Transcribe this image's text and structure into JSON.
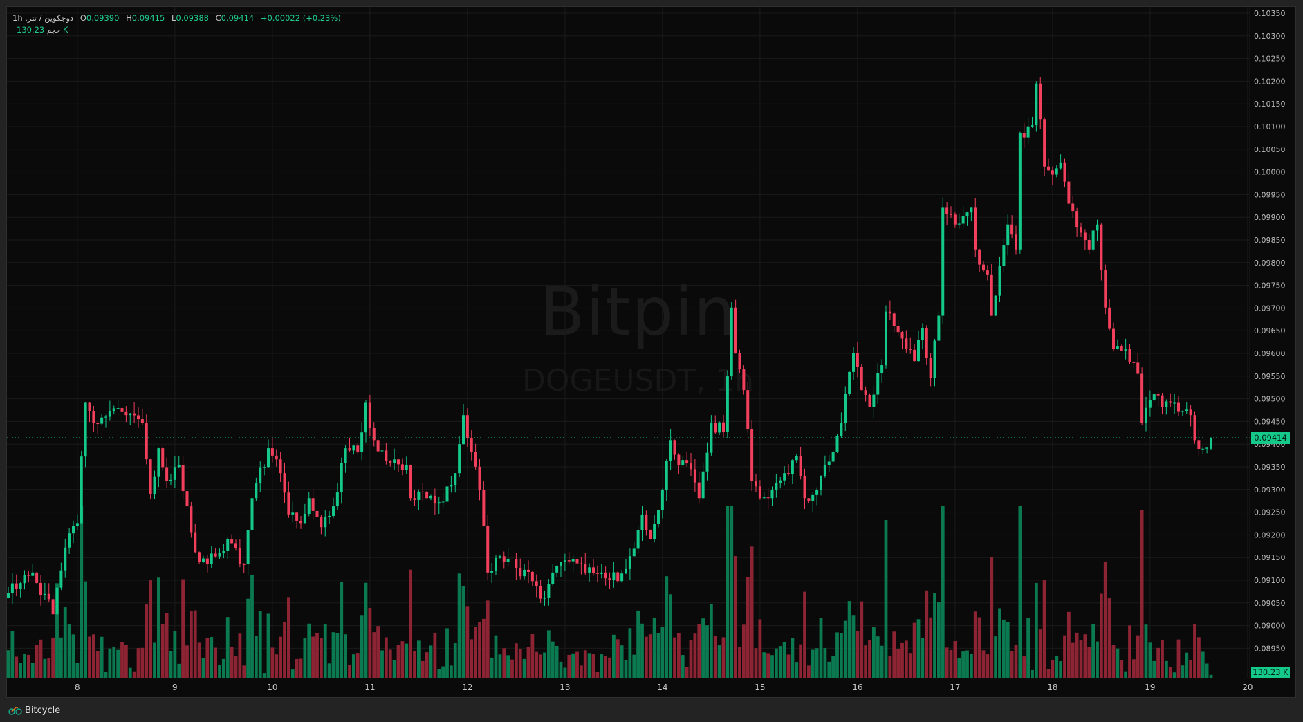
{
  "legend": {
    "symbol": "دوجکوین / تتر, 1h",
    "open_label": "O",
    "open": "0.09390",
    "high_label": "H",
    "high": "0.09415",
    "low_label": "L",
    "low": "0.09388",
    "close_label": "C",
    "close": "0.09414",
    "change": "+0.00022 (+0.23%)",
    "volume_label": "حجم",
    "volume": "130.23 K"
  },
  "watermark": {
    "brand": "Bitpin",
    "symbol": "DOGEUSDT, 1h"
  },
  "price_tag": "0.09414",
  "volume_tag": "130.23 K",
  "footer": {
    "brand": "Bitcycle"
  },
  "colors": {
    "up": "#14c98a",
    "down": "#f23f5c",
    "vol_up": "#0c7a50",
    "vol_down": "#8c2433",
    "bg": "#0a0a0a",
    "grid": "#1a1a1a"
  },
  "chart_data": {
    "type": "candlestick",
    "title": "DOGEUSDT, 1h",
    "interval": "1h",
    "ylim": [
      0.0892,
      0.1036
    ],
    "y_ticks": [
      "0.10350",
      "0.10300",
      "0.10250",
      "0.10200",
      "0.10150",
      "0.10100",
      "0.10050",
      "0.10000",
      "0.09950",
      "0.09900",
      "0.09850",
      "0.09800",
      "0.09750",
      "0.09700",
      "0.09650",
      "0.09600",
      "0.09550",
      "0.09500",
      "0.09450",
      "0.09400",
      "0.09350",
      "0.09300",
      "0.09250",
      "0.09200",
      "0.09150",
      "0.09100",
      "0.09050",
      "0.09000",
      "0.08950"
    ],
    "x_ticks": [
      "8",
      "9",
      "10",
      "11",
      "12",
      "13",
      "14",
      "15",
      "16",
      "17",
      "18",
      "19",
      "20"
    ],
    "first_x_tick_candle": 17,
    "candles_per_tick": 24,
    "close_keypoints": [
      [
        0,
        0.09071
      ],
      [
        6,
        0.09117
      ],
      [
        11,
        0.09025
      ],
      [
        14,
        0.09172
      ],
      [
        17,
        0.09226
      ],
      [
        19,
        0.09491
      ],
      [
        21,
        0.09446
      ],
      [
        25,
        0.09473
      ],
      [
        29,
        0.09464
      ],
      [
        33,
        0.09446
      ],
      [
        35,
        0.0929
      ],
      [
        37,
        0.09391
      ],
      [
        39,
        0.09318
      ],
      [
        42,
        0.09354
      ],
      [
        44,
        0.09263
      ],
      [
        46,
        0.09162
      ],
      [
        49,
        0.09135
      ],
      [
        54,
        0.0919
      ],
      [
        58,
        0.09135
      ],
      [
        60,
        0.09281
      ],
      [
        64,
        0.09391
      ],
      [
        67,
        0.09336
      ],
      [
        69,
        0.09245
      ],
      [
        72,
        0.09226
      ],
      [
        74,
        0.09281
      ],
      [
        77,
        0.09217
      ],
      [
        80,
        0.09263
      ],
      [
        83,
        0.09391
      ],
      [
        86,
        0.09382
      ],
      [
        88,
        0.09491
      ],
      [
        90,
        0.09409
      ],
      [
        93,
        0.09363
      ],
      [
        98,
        0.09354
      ],
      [
        99,
        0.09281
      ],
      [
        103,
        0.09281
      ],
      [
        106,
        0.09272
      ],
      [
        110,
        0.09336
      ],
      [
        112,
        0.09464
      ],
      [
        114,
        0.09382
      ],
      [
        116,
        0.09299
      ],
      [
        118,
        0.09117
      ],
      [
        121,
        0.09153
      ],
      [
        125,
        0.09126
      ],
      [
        129,
        0.09098
      ],
      [
        132,
        0.09062
      ],
      [
        134,
        0.09117
      ],
      [
        137,
        0.09144
      ],
      [
        142,
        0.09117
      ],
      [
        146,
        0.09117
      ],
      [
        150,
        0.09098
      ],
      [
        153,
        0.09153
      ],
      [
        156,
        0.09245
      ],
      [
        158,
        0.0919
      ],
      [
        161,
        0.09299
      ],
      [
        163,
        0.09409
      ],
      [
        165,
        0.09354
      ],
      [
        168,
        0.09345
      ],
      [
        170,
        0.09281
      ],
      [
        173,
        0.09446
      ],
      [
        176,
        0.09427
      ],
      [
        178,
        0.09701
      ],
      [
        179,
        0.09601
      ],
      [
        181,
        0.09519
      ],
      [
        183,
        0.09318
      ],
      [
        185,
        0.09281
      ],
      [
        188,
        0.09299
      ],
      [
        191,
        0.09336
      ],
      [
        194,
        0.09373
      ],
      [
        196,
        0.09281
      ],
      [
        199,
        0.09299
      ],
      [
        201,
        0.09354
      ],
      [
        203,
        0.09382
      ],
      [
        205,
        0.09446
      ],
      [
        208,
        0.09601
      ],
      [
        210,
        0.09519
      ],
      [
        212,
        0.09482
      ],
      [
        215,
        0.09574
      ],
      [
        216,
        0.09692
      ],
      [
        219,
        0.09647
      ],
      [
        221,
        0.0961
      ],
      [
        223,
        0.09583
      ],
      [
        225,
        0.09656
      ],
      [
        227,
        0.09546
      ],
      [
        229,
        0.09683
      ],
      [
        230,
        0.09921
      ],
      [
        233,
        0.09884
      ],
      [
        235,
        0.09902
      ],
      [
        237,
        0.09921
      ],
      [
        238,
        0.09829
      ],
      [
        241,
        0.09774
      ],
      [
        242,
        0.09683
      ],
      [
        244,
        0.09793
      ],
      [
        246,
        0.09884
      ],
      [
        248,
        0.09829
      ],
      [
        249,
        0.10085
      ],
      [
        252,
        0.10103
      ],
      [
        253,
        0.10195
      ],
      [
        255,
        0.10012
      ],
      [
        257,
        0.09994
      ],
      [
        259,
        0.10021
      ],
      [
        261,
        0.0993
      ],
      [
        264,
        0.09866
      ],
      [
        266,
        0.09829
      ],
      [
        268,
        0.09884
      ],
      [
        270,
        0.09701
      ],
      [
        272,
        0.0961
      ],
      [
        275,
        0.0961
      ],
      [
        278,
        0.09555
      ],
      [
        279,
        0.09446
      ],
      [
        282,
        0.0951
      ],
      [
        284,
        0.09482
      ],
      [
        287,
        0.09491
      ],
      [
        289,
        0.09473
      ],
      [
        291,
        0.09464
      ],
      [
        292,
        0.09409
      ],
      [
        294,
        0.0939
      ],
      [
        296,
        0.09414
      ]
    ],
    "last_candle": {
      "open": 0.0939,
      "high": 0.09415,
      "low": 0.09388,
      "close": 0.09414,
      "volume_k": 130.23
    },
    "current_price": 0.09414
  }
}
